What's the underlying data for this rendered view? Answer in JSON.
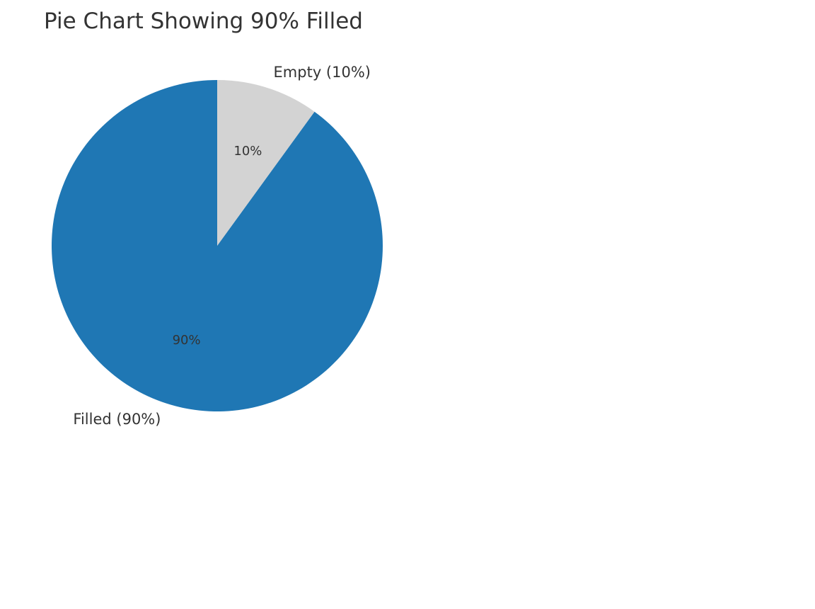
{
  "chart_data": {
    "type": "pie",
    "title": "Pie Chart Showing 90% Filled",
    "categories": [
      "Filled",
      "Empty"
    ],
    "values": [
      90,
      10
    ],
    "slice_labels": [
      "Filled (90%)",
      "Empty (10%)"
    ],
    "percent_labels": [
      "90%",
      "10%"
    ],
    "colors": [
      "#1f77b4",
      "#d3d3d3"
    ],
    "start_angle_degrees": 90,
    "direction": "counterclockwise"
  }
}
